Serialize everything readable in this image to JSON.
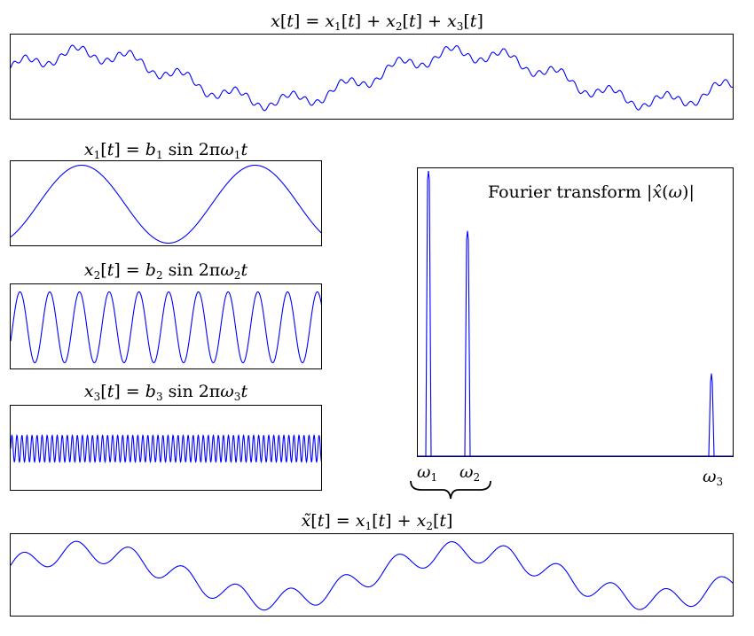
{
  "titles": {
    "sum": "x[t] = x1[t] + x2[t] + x3[t]",
    "x1": "x1[t] = b1 sin 2πω1t",
    "x2": "x2[t] = b2 sin 2πω2t",
    "x3": "x3[t] = b3 sin 2πω3t",
    "lowpass": "x̃[t] = x1[t] + x2[t]"
  },
  "fourier": {
    "label": "Fourier transform |x̂(ω)|",
    "freq_labels": [
      "ω1",
      "ω2",
      "ω3"
    ],
    "peaks": [
      1.0,
      0.79,
      0.29
    ]
  },
  "signals": {
    "b1": 1.0,
    "b2": 0.45,
    "b3": 0.18,
    "x1_cycles": 2,
    "x2_cycles": 10,
    "x3_cycles": 62
  },
  "colors": {
    "line": "#0000ff",
    "frame": "#000000"
  }
}
